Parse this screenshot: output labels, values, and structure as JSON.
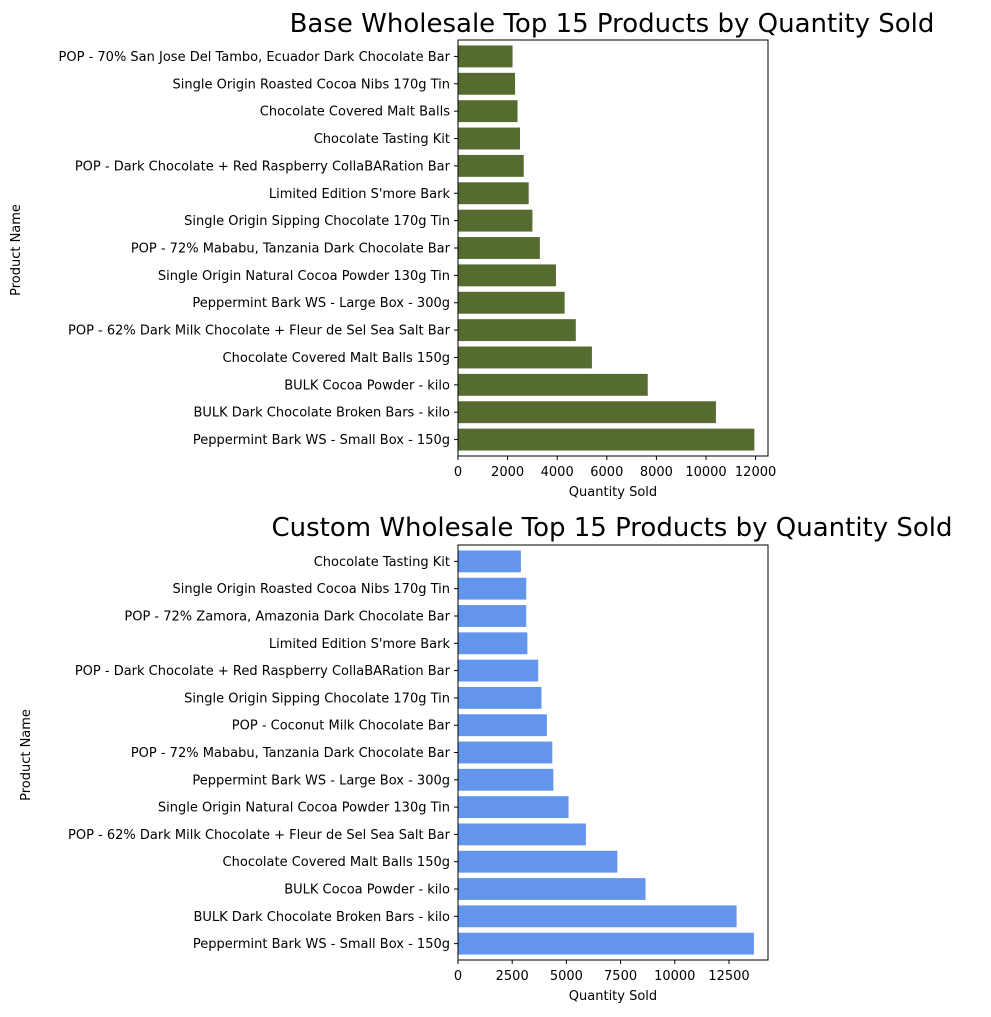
{
  "chart_data": [
    {
      "type": "bar",
      "orientation": "horizontal",
      "title": "Base Wholesale Top 15  Products by Quantity Sold",
      "xlabel": "Quantity Sold",
      "ylabel": "Product Name",
      "xlim": [
        0,
        12500
      ],
      "xticks": [
        0,
        2000,
        4000,
        6000,
        8000,
        10000,
        12000
      ],
      "color": "#556b2f",
      "categories": [
        "Peppermint Bark WS - Small Box - 150g",
        "BULK Dark Chocolate Broken Bars - kilo",
        "BULK Cocoa Powder - kilo",
        "Chocolate Covered Malt Balls 150g",
        "POP - 62% Dark Milk Chocolate + Fleur de Sel Sea Salt Bar",
        "Peppermint Bark WS - Large Box - 300g",
        "Single Origin Natural Cocoa Powder 130g Tin",
        "POP - 72% Mababu, Tanzania Dark Chocolate Bar",
        "Single Origin Sipping Chocolate 170g Tin",
        "Limited Edition S'more Bark",
        "POP - Dark Chocolate + Red Raspberry CollaBARation Bar",
        "Chocolate Tasting Kit",
        "Chocolate Covered Malt Balls",
        "Single Origin Roasted Cocoa Nibs 170g Tin",
        "POP - 70% San Jose Del Tambo, Ecuador Dark Chocolate Bar"
      ],
      "values": [
        11950,
        10400,
        7650,
        5400,
        4750,
        4300,
        3950,
        3300,
        3000,
        2850,
        2650,
        2500,
        2400,
        2300,
        2200
      ]
    },
    {
      "type": "bar",
      "orientation": "horizontal",
      "title": "Custom Wholesale Top 15  Products by Quantity Sold",
      "xlabel": "Quantity Sold",
      "ylabel": "Product Name",
      "xlim": [
        0,
        14300
      ],
      "xticks": [
        0,
        2500,
        5000,
        7500,
        10000,
        12500
      ],
      "color": "#6495ed",
      "categories": [
        "Peppermint Bark WS - Small Box - 150g",
        "BULK Dark Chocolate Broken Bars - kilo",
        "BULK Cocoa Powder - kilo",
        "Chocolate Covered Malt Balls 150g",
        "POP - 62% Dark Milk Chocolate + Fleur de Sel Sea Salt Bar",
        "Single Origin Natural Cocoa Powder 130g Tin",
        "Peppermint Bark WS - Large Box - 300g",
        "POP - 72% Mababu, Tanzania Dark Chocolate Bar",
        "POP - Coconut Milk Chocolate Bar",
        "Single Origin Sipping Chocolate 170g Tin",
        "POP - Dark Chocolate + Red Raspberry CollaBARation Bar",
        "Limited Edition S'more Bark",
        "POP - 72% Zamora, Amazonia Dark Chocolate Bar",
        "Single Origin Roasted Cocoa Nibs 170g Tin",
        "Chocolate Tasting Kit"
      ],
      "values": [
        13650,
        12850,
        8650,
        7350,
        5900,
        5100,
        4400,
        4350,
        4100,
        3850,
        3700,
        3200,
        3150,
        3150,
        2900
      ]
    }
  ]
}
